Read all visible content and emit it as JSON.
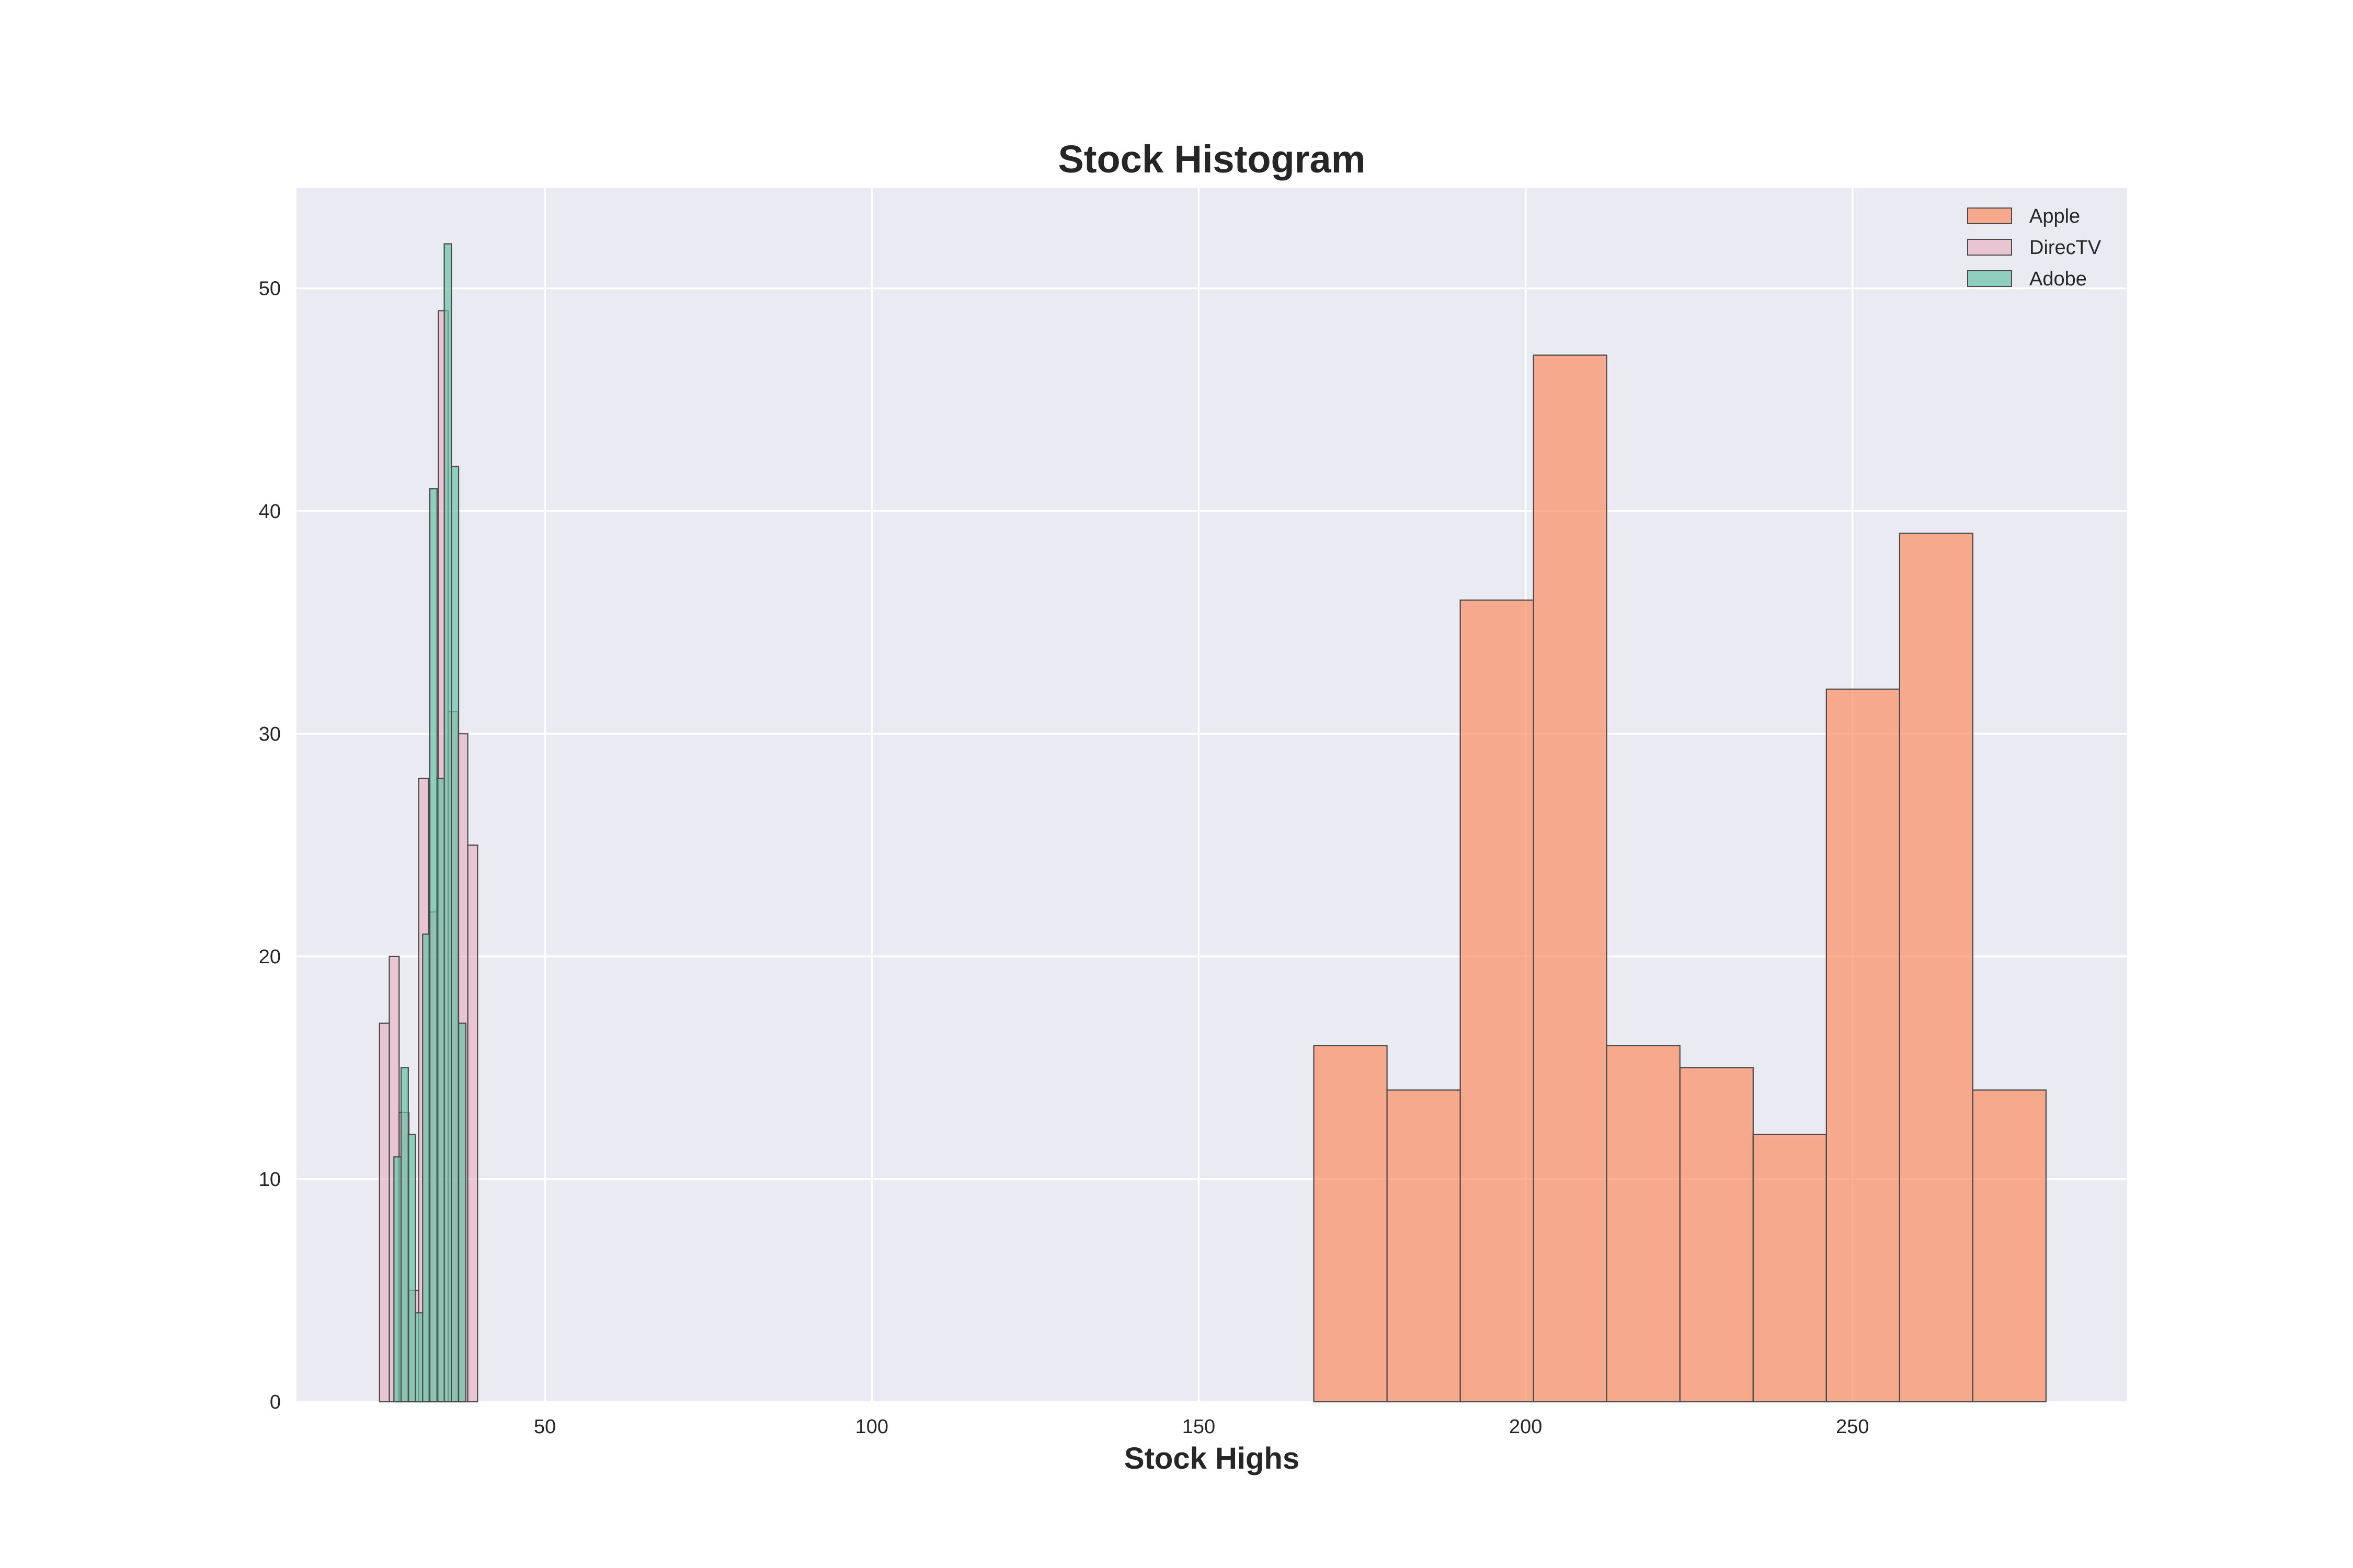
{
  "chart_data": {
    "type": "histogram",
    "title": "Stock Histogram",
    "xlabel": "Stock Highs",
    "ylabel": "",
    "xlim": [
      12,
      292
    ],
    "ylim": [
      0,
      54.5
    ],
    "xticks": [
      50,
      100,
      150,
      200,
      250
    ],
    "yticks": [
      0,
      10,
      20,
      30,
      40,
      50
    ],
    "grid": true,
    "legend_position": "top-right",
    "colors": {
      "plot_background": "#eaeaf2",
      "grid": "#ffffff",
      "edge": "#4a4a4a",
      "text": "#262626"
    },
    "series": [
      {
        "name": "Apple",
        "color": "#fc8d62",
        "opacity": 0.7,
        "bins": [
          {
            "x0": 167.6,
            "x1": 178.8,
            "count": 16
          },
          {
            "x0": 178.8,
            "x1": 190.0,
            "count": 14
          },
          {
            "x0": 190.0,
            "x1": 201.2,
            "count": 36
          },
          {
            "x0": 201.2,
            "x1": 212.4,
            "count": 47
          },
          {
            "x0": 212.4,
            "x1": 223.6,
            "count": 16
          },
          {
            "x0": 223.6,
            "x1": 234.8,
            "count": 15
          },
          {
            "x0": 234.8,
            "x1": 246.0,
            "count": 12
          },
          {
            "x0": 246.0,
            "x1": 257.2,
            "count": 32
          },
          {
            "x0": 257.2,
            "x1": 268.4,
            "count": 39
          },
          {
            "x0": 268.4,
            "x1": 279.6,
            "count": 14
          }
        ]
      },
      {
        "name": "DirecTV",
        "color": "#e7a5bc",
        "opacity": 0.55,
        "bins": [
          {
            "x0": 24.7,
            "x1": 26.2,
            "count": 17
          },
          {
            "x0": 26.2,
            "x1": 27.7,
            "count": 20
          },
          {
            "x0": 27.7,
            "x1": 29.2,
            "count": 13
          },
          {
            "x0": 29.2,
            "x1": 30.7,
            "count": 5
          },
          {
            "x0": 30.7,
            "x1": 32.2,
            "count": 28
          },
          {
            "x0": 32.2,
            "x1": 33.7,
            "count": 22
          },
          {
            "x0": 33.7,
            "x1": 35.2,
            "count": 49
          },
          {
            "x0": 35.2,
            "x1": 36.7,
            "count": 31
          },
          {
            "x0": 36.7,
            "x1": 38.2,
            "count": 30
          },
          {
            "x0": 38.2,
            "x1": 39.7,
            "count": 25
          }
        ]
      },
      {
        "name": "Adobe",
        "color": "#66c2a5",
        "opacity": 0.7,
        "bins": [
          {
            "x0": 26.9,
            "x1": 28.0,
            "count": 11
          },
          {
            "x0": 28.0,
            "x1": 29.1,
            "count": 15
          },
          {
            "x0": 29.1,
            "x1": 30.2,
            "count": 12
          },
          {
            "x0": 30.2,
            "x1": 31.3,
            "count": 4
          },
          {
            "x0": 31.3,
            "x1": 32.4,
            "count": 21
          },
          {
            "x0": 32.4,
            "x1": 33.5,
            "count": 41
          },
          {
            "x0": 33.5,
            "x1": 34.6,
            "count": 28
          },
          {
            "x0": 34.6,
            "x1": 35.7,
            "count": 52
          },
          {
            "x0": 35.7,
            "x1": 36.8,
            "count": 42
          },
          {
            "x0": 36.8,
            "x1": 37.9,
            "count": 17
          }
        ]
      }
    ]
  }
}
